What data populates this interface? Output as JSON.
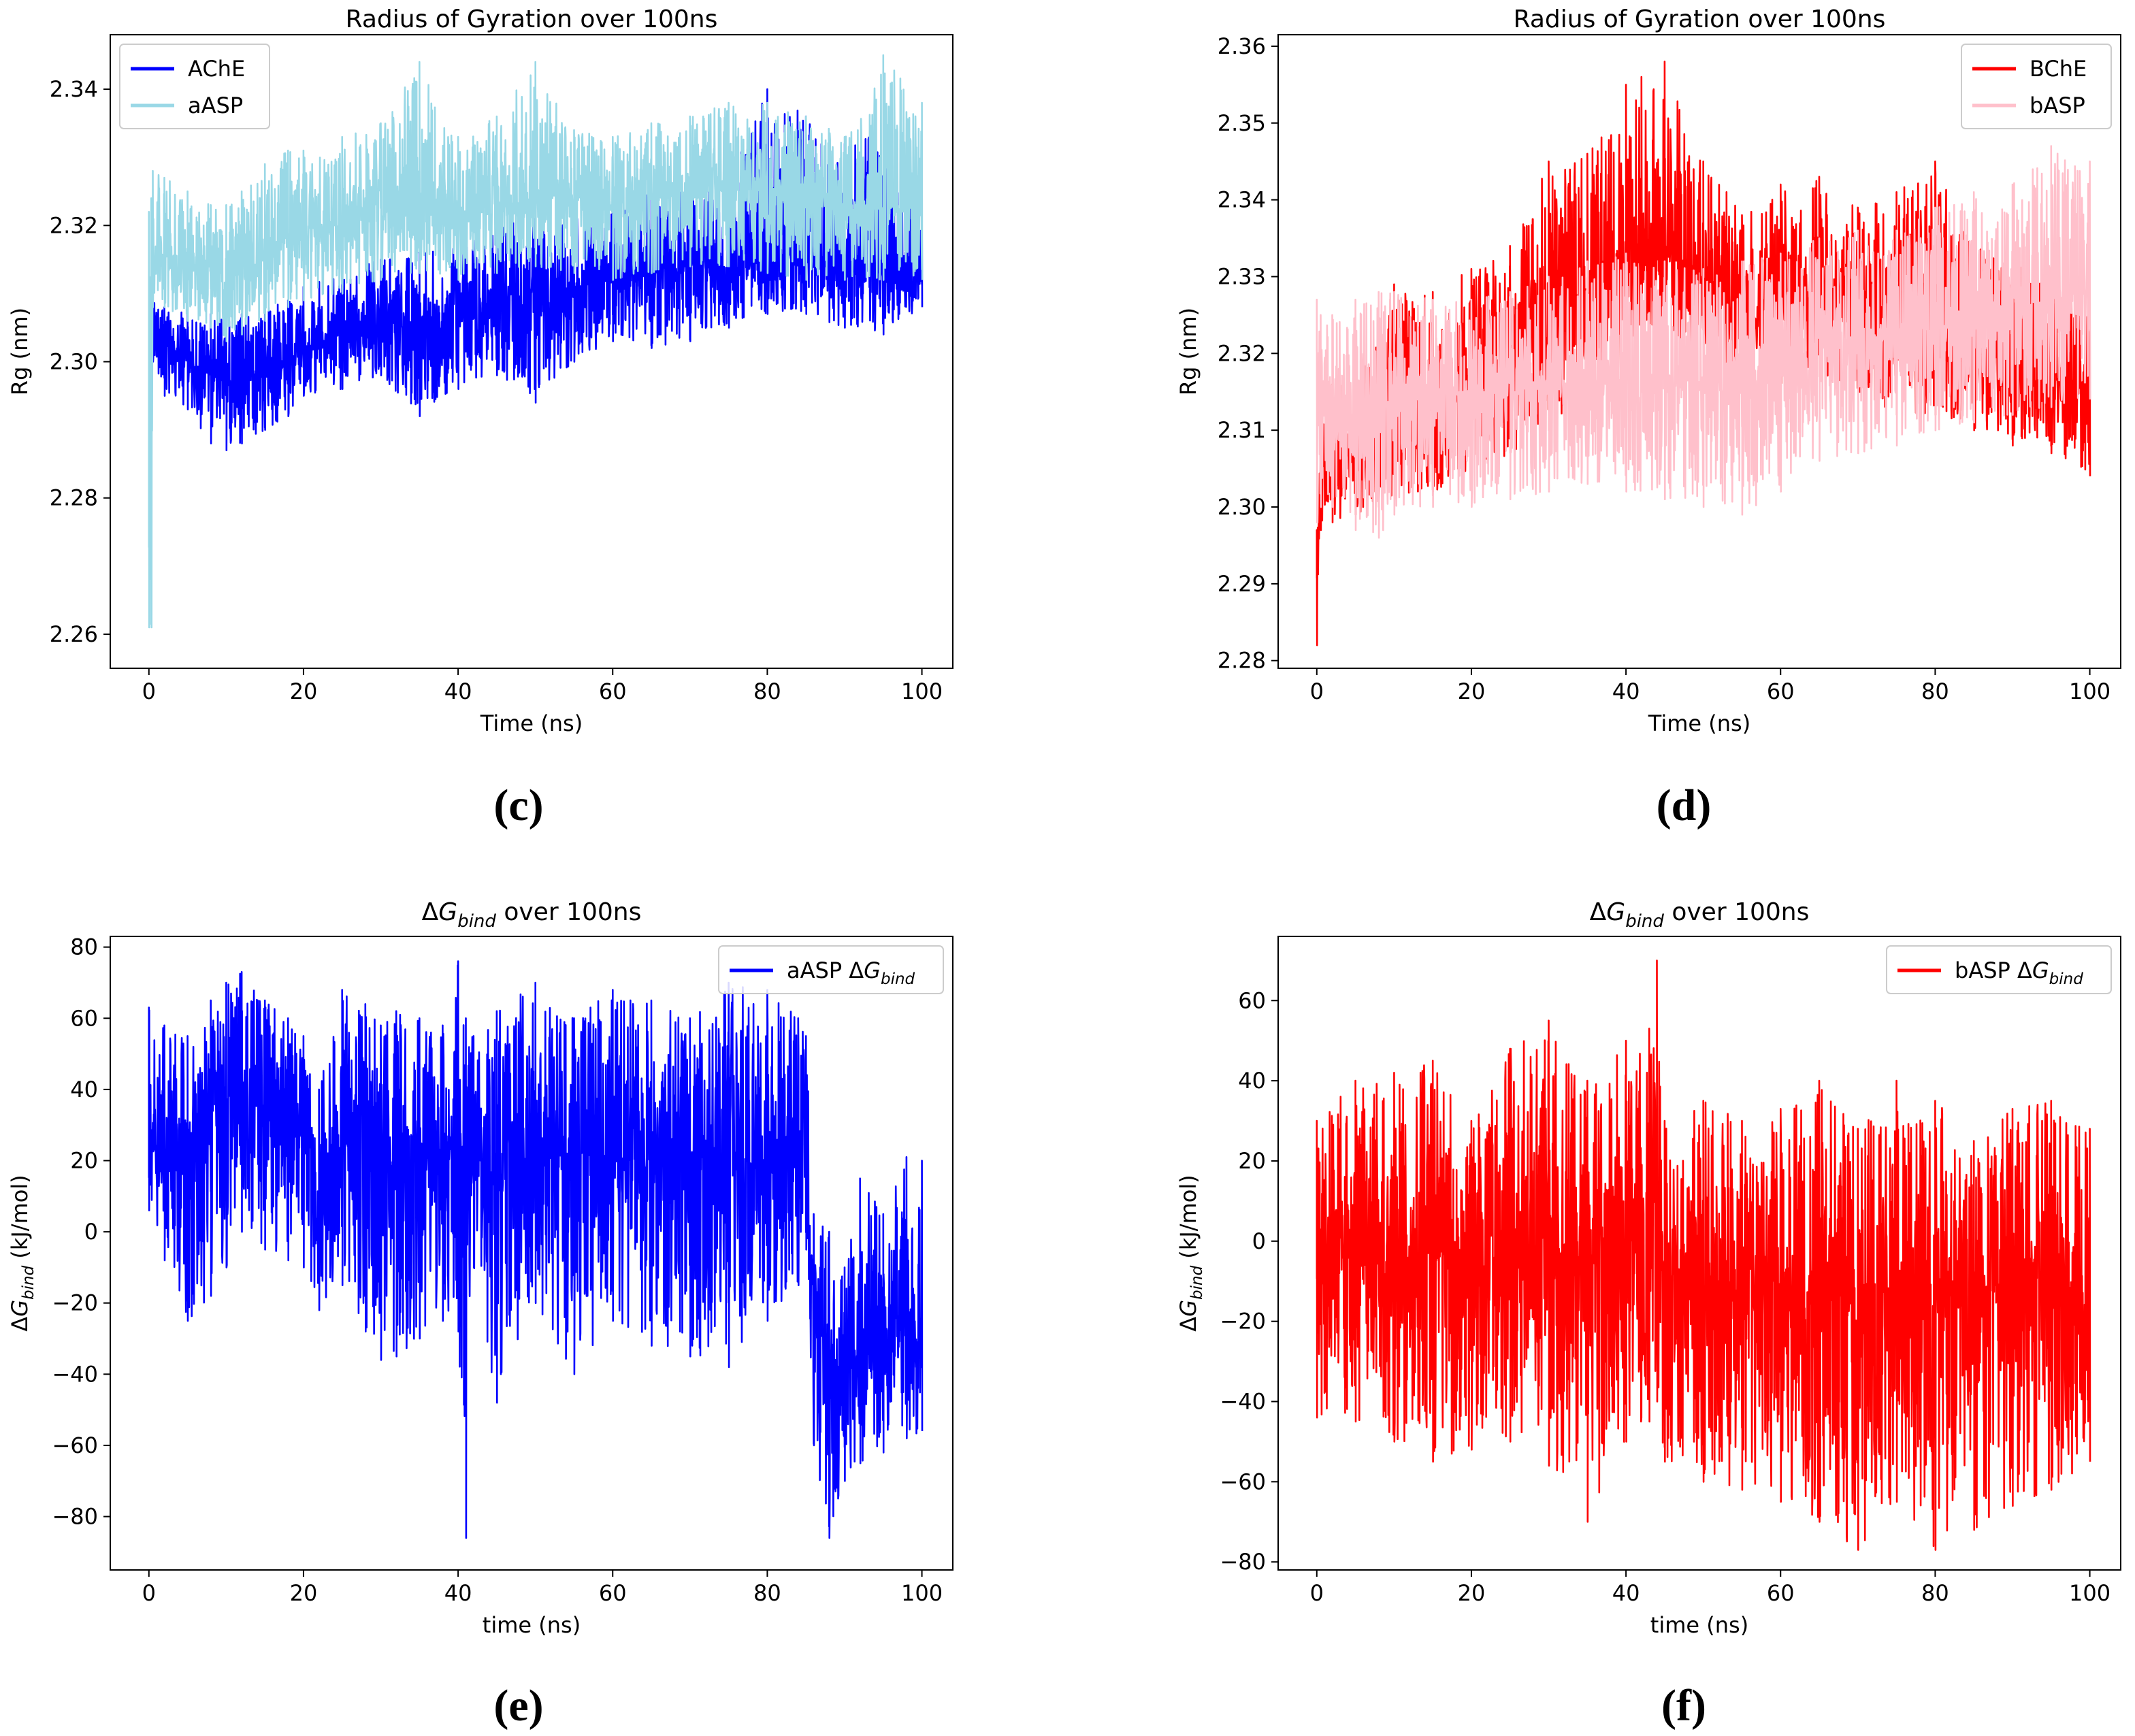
{
  "figure": {
    "panels": [
      {
        "id": "c",
        "caption": "(c)",
        "title": "Radius of Gyration over 100ns"
      },
      {
        "id": "d",
        "caption": "(d)",
        "title": "Radius of Gyration over 100ns"
      },
      {
        "id": "e",
        "caption": "(e)",
        "title_parts": [
          "ΔG",
          "bind",
          " over 100ns"
        ]
      },
      {
        "id": "f",
        "caption": "(f)",
        "title_parts": [
          "ΔG",
          "bind",
          " over 100ns"
        ]
      }
    ]
  },
  "chart_data": [
    {
      "type": "line",
      "title": "Radius of Gyration over 100ns",
      "xlabel": "Time (ns)",
      "ylabel": "Rg (nm)",
      "xlim": [
        -5,
        104
      ],
      "ylim": [
        2.255,
        2.348
      ],
      "xticks": [
        "0",
        "20",
        "40",
        "60",
        "80",
        "100"
      ],
      "yticks": [
        "2.26",
        "2.28",
        "2.30",
        "2.32",
        "2.34"
      ],
      "legend_position": "top-left",
      "series": [
        {
          "name": "AChE",
          "color": "#0000ff",
          "x": [
            0,
            0.5,
            2,
            5,
            8,
            10,
            12,
            15,
            18,
            20,
            25,
            30,
            35,
            40,
            45,
            50,
            55,
            60,
            65,
            70,
            75,
            80,
            85,
            90,
            95,
            100
          ],
          "y": [
            2.3,
            2.305,
            2.303,
            2.3,
            2.298,
            2.297,
            2.298,
            2.299,
            2.3,
            2.302,
            2.304,
            2.306,
            2.305,
            2.307,
            2.309,
            2.31,
            2.311,
            2.312,
            2.313,
            2.314,
            2.314,
            2.315,
            2.316,
            2.314,
            2.313,
            2.313
          ],
          "ymin": [
            2.296,
            2.3,
            2.295,
            2.293,
            2.288,
            2.287,
            2.288,
            2.29,
            2.292,
            2.295,
            2.296,
            2.298,
            2.292,
            2.296,
            2.298,
            2.294,
            2.3,
            2.303,
            2.302,
            2.303,
            2.305,
            2.307,
            2.307,
            2.305,
            2.304,
            2.308
          ],
          "ymax": [
            2.305,
            2.309,
            2.308,
            2.308,
            2.307,
            2.306,
            2.307,
            2.308,
            2.309,
            2.311,
            2.313,
            2.315,
            2.316,
            2.317,
            2.32,
            2.321,
            2.322,
            2.323,
            2.325,
            2.326,
            2.328,
            2.34,
            2.336,
            2.332,
            2.334,
            2.322
          ]
        },
        {
          "name": "aASP",
          "color": "#99d8e6",
          "x": [
            0,
            0.3,
            0.5,
            2,
            5,
            8,
            10,
            12,
            15,
            18,
            20,
            25,
            30,
            35,
            40,
            45,
            50,
            55,
            60,
            65,
            70,
            75,
            80,
            85,
            90,
            95,
            100
          ],
          "y": [
            2.301,
            2.261,
            2.315,
            2.316,
            2.315,
            2.313,
            2.312,
            2.313,
            2.316,
            2.318,
            2.319,
            2.32,
            2.322,
            2.323,
            2.322,
            2.323,
            2.324,
            2.324,
            2.323,
            2.324,
            2.325,
            2.325,
            2.326,
            2.325,
            2.323,
            2.323,
            2.322
          ],
          "ymin": [
            2.261,
            2.261,
            2.308,
            2.308,
            2.306,
            2.305,
            2.303,
            2.304,
            2.306,
            2.308,
            2.309,
            2.31,
            2.312,
            2.313,
            2.312,
            2.313,
            2.314,
            2.313,
            2.312,
            2.313,
            2.314,
            2.314,
            2.313,
            2.312,
            2.312,
            2.312,
            2.312
          ],
          "ymax": [
            2.322,
            2.324,
            2.328,
            2.327,
            2.325,
            2.323,
            2.323,
            2.325,
            2.329,
            2.331,
            2.331,
            2.333,
            2.335,
            2.344,
            2.333,
            2.336,
            2.344,
            2.334,
            2.333,
            2.335,
            2.336,
            2.338,
            2.338,
            2.336,
            2.333,
            2.345,
            2.338
          ]
        }
      ]
    },
    {
      "type": "line",
      "title": "Radius of Gyration over 100ns",
      "xlabel": "Time (ns)",
      "ylabel": "Rg (nm)",
      "xlim": [
        -5,
        104
      ],
      "ylim": [
        2.279,
        2.3615
      ],
      "xticks": [
        "0",
        "20",
        "40",
        "60",
        "80",
        "100"
      ],
      "yticks": [
        "2.28",
        "2.29",
        "2.30",
        "2.31",
        "2.32",
        "2.33",
        "2.34",
        "2.35",
        "2.36"
      ],
      "legend_position": "top-right",
      "series": [
        {
          "name": "BChE",
          "color": "#ff0000",
          "x": [
            0,
            0.5,
            2,
            5,
            8,
            10,
            15,
            20,
            25,
            30,
            35,
            40,
            42,
            45,
            50,
            53,
            55,
            60,
            65,
            70,
            75,
            80,
            85,
            90,
            95,
            100
          ],
          "y": [
            2.29,
            2.305,
            2.306,
            2.307,
            2.309,
            2.311,
            2.313,
            2.315,
            2.318,
            2.322,
            2.326,
            2.33,
            2.333,
            2.334,
            2.33,
            2.326,
            2.324,
            2.326,
            2.329,
            2.327,
            2.323,
            2.323,
            2.32,
            2.318,
            2.317,
            2.315
          ],
          "ymin": [
            2.282,
            2.297,
            2.298,
            2.299,
            2.3,
            2.301,
            2.302,
            2.303,
            2.307,
            2.31,
            2.314,
            2.317,
            2.32,
            2.322,
            2.32,
            2.317,
            2.315,
            2.316,
            2.317,
            2.315,
            2.312,
            2.312,
            2.31,
            2.308,
            2.307,
            2.304
          ],
          "ymax": [
            2.297,
            2.315,
            2.316,
            2.318,
            2.322,
            2.329,
            2.328,
            2.331,
            2.334,
            2.345,
            2.346,
            2.355,
            2.356,
            2.358,
            2.345,
            2.341,
            2.338,
            2.342,
            2.343,
            2.339,
            2.341,
            2.345,
            2.334,
            2.333,
            2.33,
            2.331
          ]
        },
        {
          "name": "bASP",
          "color": "#ffc0cb",
          "x": [
            0,
            0.5,
            2,
            5,
            8,
            10,
            15,
            20,
            25,
            30,
            35,
            40,
            45,
            50,
            55,
            60,
            65,
            70,
            75,
            80,
            85,
            90,
            95,
            100
          ],
          "y": [
            2.311,
            2.312,
            2.312,
            2.312,
            2.313,
            2.314,
            2.315,
            2.315,
            2.316,
            2.316,
            2.316,
            2.316,
            2.316,
            2.316,
            2.317,
            2.318,
            2.32,
            2.322,
            2.322,
            2.324,
            2.325,
            2.326,
            2.327,
            2.328
          ],
          "ymin": [
            2.298,
            2.3,
            2.3,
            2.297,
            2.296,
            2.299,
            2.3,
            2.3,
            2.301,
            2.302,
            2.303,
            2.302,
            2.301,
            2.3,
            2.299,
            2.302,
            2.306,
            2.307,
            2.308,
            2.31,
            2.311,
            2.312,
            2.313,
            2.314
          ],
          "ymax": [
            2.327,
            2.325,
            2.325,
            2.327,
            2.328,
            2.328,
            2.327,
            2.327,
            2.328,
            2.33,
            2.332,
            2.333,
            2.332,
            2.331,
            2.332,
            2.333,
            2.335,
            2.336,
            2.336,
            2.339,
            2.341,
            2.342,
            2.347,
            2.345
          ]
        }
      ]
    },
    {
      "type": "line",
      "title": "ΔG_bind over 100ns",
      "xlabel": "time (ns)",
      "ylabel": "ΔG_bind (kJ/mol)",
      "xlim": [
        -5,
        104
      ],
      "ylim": [
        -95,
        83
      ],
      "xticks": [
        "0",
        "20",
        "40",
        "60",
        "80",
        "100"
      ],
      "yticks": [
        "−80",
        "−60",
        "−40",
        "−20",
        "0",
        "20",
        "40",
        "60",
        "80"
      ],
      "legend_position": "top-right",
      "series": [
        {
          "name": "aASP ΔG_bind",
          "color": "#0000ff",
          "x": [
            0,
            2,
            5,
            8,
            10,
            12,
            15,
            18,
            20,
            22,
            25,
            28,
            30,
            32,
            35,
            38,
            40,
            41,
            42,
            45,
            50,
            55,
            60,
            65,
            70,
            75,
            80,
            84,
            85,
            86,
            88,
            90,
            92,
            95,
            98,
            100
          ],
          "y": [
            28,
            27,
            25,
            28,
            32,
            36,
            35,
            33,
            30,
            5,
            30,
            35,
            18,
            20,
            20,
            22,
            24,
            20,
            22,
            22,
            20,
            22,
            21,
            20,
            22,
            21,
            20,
            18,
            15,
            -20,
            -35,
            -42,
            -33,
            -28,
            -30,
            -30
          ],
          "ymin": [
            6,
            -8,
            -25,
            -18,
            -10,
            0,
            -5,
            -8,
            -10,
            -22,
            -15,
            -28,
            -36,
            -35,
            -30,
            -25,
            -28,
            -86,
            -10,
            -48,
            -20,
            -40,
            -25,
            -32,
            -35,
            -38,
            -25,
            -15,
            -5,
            -60,
            -86,
            -70,
            -65,
            -62,
            -58,
            -56
          ],
          "ymax": [
            63,
            58,
            55,
            65,
            70,
            73,
            65,
            60,
            55,
            40,
            68,
            64,
            58,
            62,
            60,
            58,
            76,
            60,
            55,
            62,
            70,
            60,
            68,
            65,
            60,
            70,
            68,
            60,
            55,
            5,
            0,
            -10,
            15,
            5,
            21,
            20
          ]
        }
      ]
    },
    {
      "type": "line",
      "title": "ΔG_bind over 100ns",
      "xlabel": "time (ns)",
      "ylabel": "ΔG_bind (kJ/mol)",
      "xlim": [
        -5,
        104
      ],
      "ylim": [
        -82,
        76
      ],
      "xticks": [
        "0",
        "20",
        "40",
        "60",
        "80",
        "100"
      ],
      "yticks": [
        "−80",
        "−60",
        "−40",
        "−20",
        "0",
        "20",
        "40",
        "60"
      ],
      "legend_position": "top-right",
      "series": [
        {
          "name": "bASP ΔG_bind",
          "color": "#ff0000",
          "x": [
            0,
            5,
            10,
            15,
            20,
            25,
            30,
            35,
            40,
            43,
            44,
            45,
            50,
            55,
            60,
            65,
            70,
            75,
            80,
            85,
            90,
            95,
            100
          ],
          "y": [
            -5,
            -4,
            -5,
            -3,
            -3,
            -4,
            -3,
            -2,
            2,
            8,
            12,
            -8,
            -10,
            -12,
            -11,
            -14,
            -13,
            -12,
            -14,
            -13,
            -12,
            -12,
            -15
          ],
          "ymin": [
            -44,
            -45,
            -50,
            -55,
            -52,
            -50,
            -56,
            -70,
            -50,
            -45,
            -40,
            -55,
            -60,
            -62,
            -65,
            -70,
            -77,
            -65,
            -77,
            -72,
            -66,
            -62,
            -55
          ],
          "ymax": [
            30,
            40,
            42,
            45,
            30,
            48,
            55,
            40,
            50,
            53,
            70,
            30,
            35,
            30,
            33,
            40,
            28,
            40,
            35,
            25,
            33,
            35,
            28
          ]
        }
      ]
    }
  ]
}
